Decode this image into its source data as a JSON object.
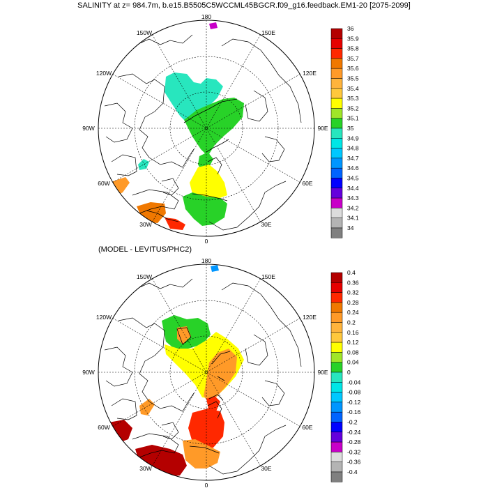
{
  "title": "SALINITY at z= 984.7m, b.e15.B5505C5WCCML45BGCR.f09_g16.feedback.EM1-20 [2075-2099]",
  "subtitle": "(MODEL - LEVITUS/PHC2)",
  "longitude_labels": {
    "top": "180",
    "bottom": "0",
    "upper_left": "150W",
    "upper_right": "150E",
    "left_upper": "120W",
    "right_upper": "120E",
    "left": "90W",
    "right": "90E",
    "left_lower": "60W",
    "right_lower": "60E",
    "lower_left": "30W",
    "lower_right": "30E"
  },
  "top_colorbar": {
    "labels": [
      "36",
      "35.9",
      "35.8",
      "35.7",
      "35.6",
      "35.5",
      "35.4",
      "35.3",
      "35.2",
      "35.1",
      "35",
      "34.9",
      "34.8",
      "34.7",
      "34.6",
      "34.5",
      "34.4",
      "34.3",
      "34.2",
      "34.1",
      "34"
    ],
    "colors": [
      "#b40000",
      "#e60000",
      "#ff2800",
      "#f07800",
      "#ff9a28",
      "#ffb43c",
      "#ffc83c",
      "#ffff00",
      "#a0e628",
      "#28d228",
      "#28e6be",
      "#00e6e6",
      "#00c8ff",
      "#0096ff",
      "#0064ff",
      "#0000ff",
      "#6400dc",
      "#c800c8",
      "#dcdcdc",
      "#b4b4b4",
      "#808080"
    ]
  },
  "bottom_colorbar": {
    "labels": [
      "0.4",
      "0.36",
      "0.32",
      "0.28",
      "0.24",
      "0.2",
      "0.16",
      "0.12",
      "0.08",
      "0.04",
      "0",
      "-0.04",
      "-0.08",
      "-0.12",
      "-0.16",
      "-0.2",
      "-0.24",
      "-0.28",
      "-0.32",
      "-0.36",
      "-0.4"
    ],
    "colors": [
      "#b40000",
      "#e60000",
      "#ff2800",
      "#f07800",
      "#ff9a28",
      "#ffb43c",
      "#ffc83c",
      "#ffff00",
      "#a0e628",
      "#28d228",
      "#28e6be",
      "#00e6e6",
      "#00c8ff",
      "#0096ff",
      "#0064ff",
      "#0000ff",
      "#6400dc",
      "#c800c8",
      "#dcdcdc",
      "#b4b4b4",
      "#808080"
    ]
  },
  "colors": {
    "orange": "#ff9a28",
    "deep_orange": "#f07800",
    "yellow": "#ffff00",
    "green": "#28d228",
    "light_green": "#a0e628",
    "cyan": "#28e6be",
    "red": "#ff2800",
    "dark_red": "#b40000",
    "magenta": "#c800c8",
    "blue": "#0096ff"
  }
}
